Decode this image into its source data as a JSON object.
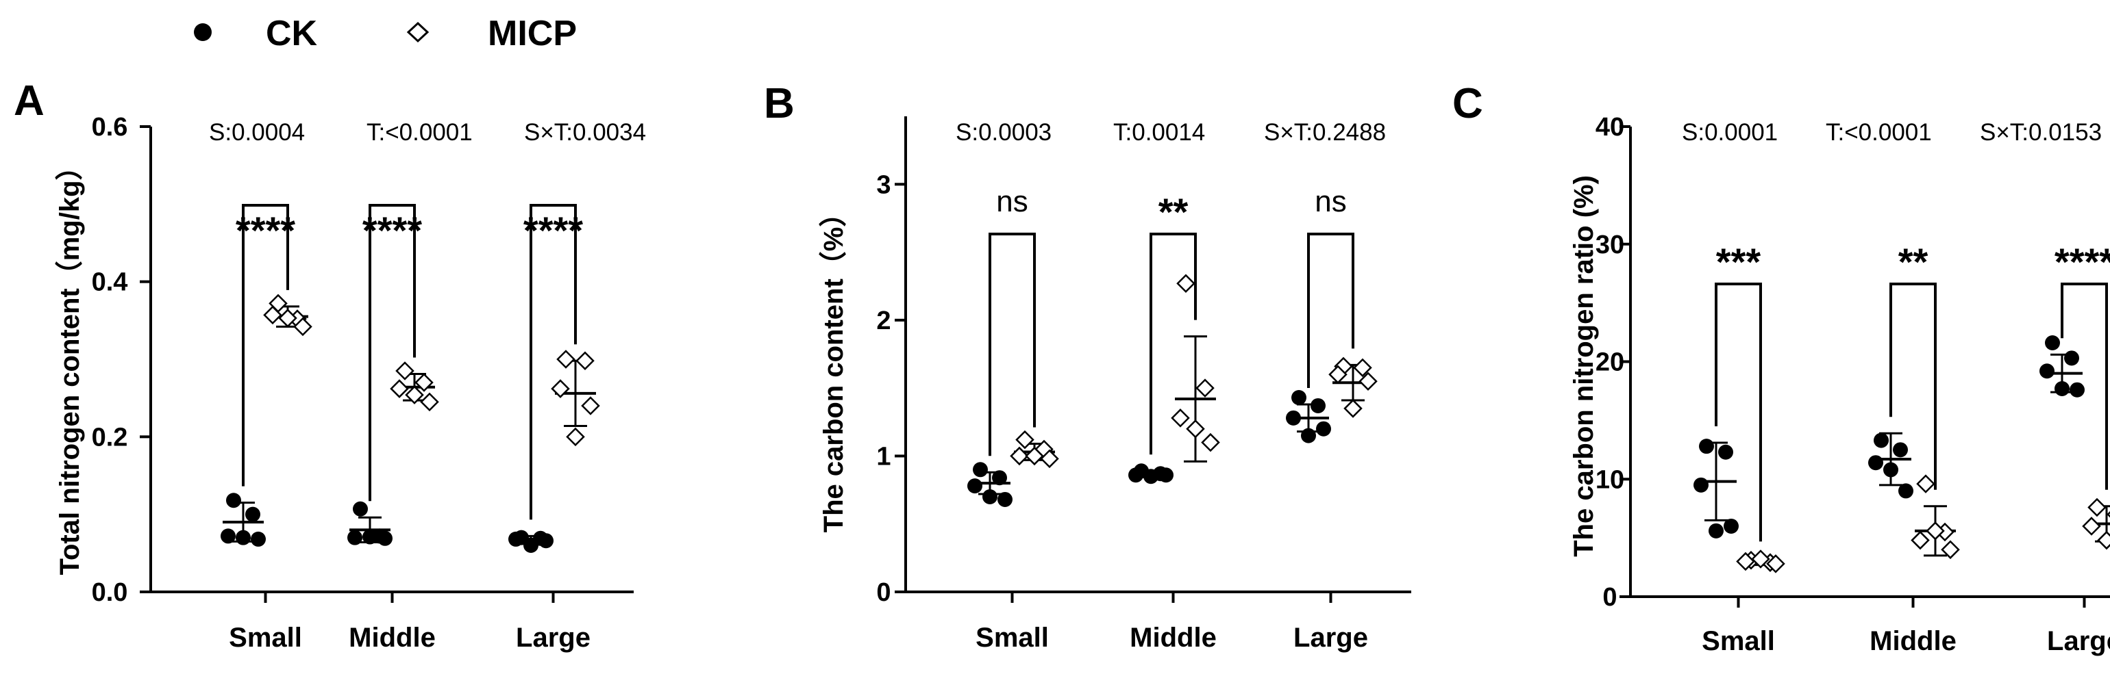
{
  "legend": {
    "entries": [
      {
        "label": "CK",
        "marker": "filled-circle"
      },
      {
        "label": "MICP",
        "marker": "open-diamond"
      }
    ]
  },
  "colors": {
    "ink": "#000000",
    "background": "#ffffff",
    "open_marker_fill": "#ffffff"
  },
  "chart_data": [
    {
      "panel": "A",
      "type": "scatter",
      "ylabel": "Total nitrogen content（mg/kg）",
      "ylim": [
        0,
        0.6
      ],
      "yticks": [
        0.0,
        0.2,
        0.4,
        0.6
      ],
      "ytick_labels": [
        "0.0",
        "0.2",
        "0.4",
        "0.6"
      ],
      "categories": [
        "Small",
        "Middle",
        "Large"
      ],
      "stats": [
        "S:0.0004",
        "T:<0.0001",
        "S×T:0.0034"
      ],
      "significance": [
        "****",
        "****",
        "****"
      ],
      "series": [
        {
          "name": "CK",
          "means": [
            0.09,
            0.08,
            0.068
          ],
          "sd": [
            0.025,
            0.016,
            0.004
          ],
          "points": [
            [
              0.118,
              0.1,
              0.072,
              0.068,
              0.07
            ],
            [
              0.107,
              0.072,
              0.07,
              0.069,
              0.071
            ],
            [
              0.07,
              0.069,
              0.068,
              0.066,
              0.06
            ]
          ]
        },
        {
          "name": "MICP",
          "means": [
            0.355,
            0.264,
            0.256
          ],
          "sd": [
            0.013,
            0.017,
            0.042
          ],
          "points": [
            [
              0.372,
              0.352,
              0.357,
              0.342,
              0.353
            ],
            [
              0.285,
              0.27,
              0.262,
              0.245,
              0.254
            ],
            [
              0.3,
              0.298,
              0.262,
              0.24,
              0.2
            ]
          ]
        }
      ]
    },
    {
      "panel": "B",
      "type": "scatter",
      "ylabel": "The carbon content（%）",
      "ylim": [
        0,
        3.5
      ],
      "yticks": [
        0,
        1,
        2,
        3
      ],
      "ytick_labels": [
        "0",
        "1",
        "2",
        "3"
      ],
      "categories": [
        "Small",
        "Middle",
        "Large"
      ],
      "stats": [
        "S:0.0003",
        "T:0.0014",
        "S×T:0.2488"
      ],
      "significance": [
        "ns",
        "**",
        "ns"
      ],
      "series": [
        {
          "name": "CK",
          "means": [
            0.8,
            0.87,
            1.28
          ],
          "sd": [
            0.08,
            0.02,
            0.1
          ],
          "points": [
            [
              0.9,
              0.84,
              0.78,
              0.68,
              0.7
            ],
            [
              0.89,
              0.87,
              0.86,
              0.86,
              0.85
            ],
            [
              1.43,
              1.37,
              1.28,
              1.2,
              1.15
            ]
          ]
        },
        {
          "name": "MICP",
          "means": [
            1.03,
            1.42,
            1.54
          ],
          "sd": [
            0.06,
            0.46,
            0.13
          ],
          "points": [
            [
              1.12,
              1.05,
              1.0,
              0.98,
              1.0
            ],
            [
              2.27,
              1.5,
              1.28,
              1.1,
              1.2
            ],
            [
              1.66,
              1.65,
              1.6,
              1.55,
              1.35
            ]
          ]
        }
      ]
    },
    {
      "panel": "C",
      "type": "scatter",
      "ylabel": "The carbon nitrogen ratio (%)",
      "ylim": [
        0,
        40
      ],
      "yticks": [
        0,
        10,
        20,
        30,
        40
      ],
      "ytick_labels": [
        "0",
        "10",
        "20",
        "30",
        "40"
      ],
      "categories": [
        "Small",
        "Middle",
        "Large"
      ],
      "stats": [
        "S:0.0001",
        "T:<0.0001",
        "S×T:0.0153"
      ],
      "significance": [
        "***",
        "**",
        "****"
      ],
      "series": [
        {
          "name": "CK",
          "means": [
            9.8,
            11.7,
            19.0
          ],
          "sd": [
            3.3,
            2.2,
            1.6
          ],
          "points": [
            [
              12.8,
              12.3,
              9.5,
              6.0,
              5.6
            ],
            [
              13.3,
              12.5,
              11.4,
              9.0,
              10.8
            ],
            [
              21.6,
              20.3,
              19.2,
              17.6,
              17.7
            ]
          ]
        },
        {
          "name": "MICP",
          "means": [
            3.0,
            5.6,
            6.2
          ],
          "sd": [
            0.3,
            2.1,
            1.5
          ],
          "points": [
            [
              3.1,
              2.9,
              3.0,
              2.8,
              3.2
            ],
            [
              9.6,
              5.5,
              4.8,
              4.0,
              5.6
            ],
            [
              7.6,
              7.0,
              6.0,
              5.0,
              4.8
            ]
          ]
        }
      ]
    }
  ]
}
